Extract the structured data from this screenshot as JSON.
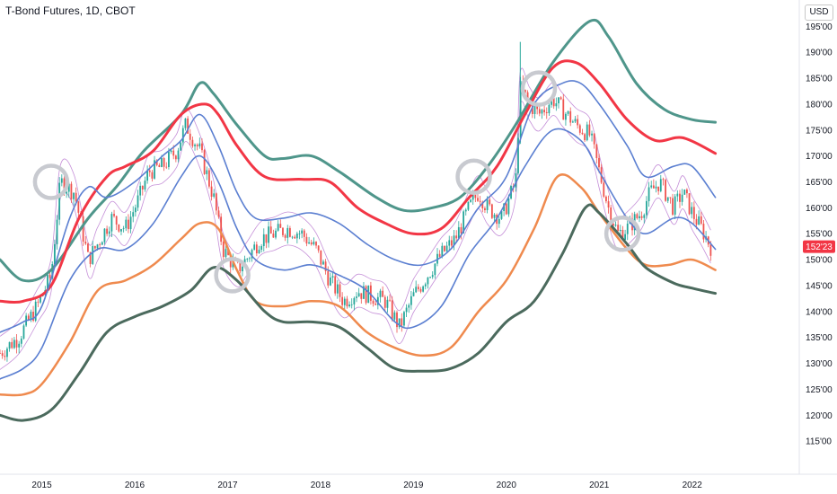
{
  "header": {
    "title": "T-Bond Futures, 1D, CBOT",
    "currency_button": "USD"
  },
  "price_tag": {
    "label": "152'23",
    "color": "#f23645"
  },
  "chart_data": {
    "type": "line",
    "ylim": [
      110,
      198
    ],
    "xlim": [
      2014.55,
      2022.38
    ],
    "y_tick_labels": [
      {
        "v": 115,
        "label": "115'00"
      },
      {
        "v": 120,
        "label": "120'00"
      },
      {
        "v": 125,
        "label": "125'00"
      },
      {
        "v": 130,
        "label": "130'00"
      },
      {
        "v": 135,
        "label": "135'00"
      },
      {
        "v": 140,
        "label": "140'00"
      },
      {
        "v": 145,
        "label": "145'00"
      },
      {
        "v": 150,
        "label": "150'00"
      },
      {
        "v": 155,
        "label": "155'00"
      },
      {
        "v": 160,
        "label": "160'00"
      },
      {
        "v": 165,
        "label": "165'00"
      },
      {
        "v": 170,
        "label": "170'00"
      },
      {
        "v": 175,
        "label": "175'00"
      },
      {
        "v": 180,
        "label": "180'00"
      },
      {
        "v": 185,
        "label": "185'00"
      },
      {
        "v": 190,
        "label": "190'00"
      },
      {
        "v": 195,
        "label": "195'00"
      }
    ],
    "x_tick_labels": [
      {
        "v": 2015,
        "label": "2015"
      },
      {
        "v": 2016,
        "label": "2016"
      },
      {
        "v": 2017,
        "label": "2017"
      },
      {
        "v": 2018,
        "label": "2018"
      },
      {
        "v": 2019,
        "label": "2019"
      },
      {
        "v": 2020,
        "label": "2020"
      },
      {
        "v": 2021,
        "label": "2021"
      },
      {
        "v": 2022,
        "label": "2022"
      }
    ],
    "series": [
      {
        "color": "#4f968b",
        "width": 3,
        "points": [
          [
            2014.55,
            150
          ],
          [
            2014.8,
            146
          ],
          [
            2015.1,
            148
          ],
          [
            2015.5,
            158
          ],
          [
            2015.8,
            164
          ],
          [
            2016.1,
            171
          ],
          [
            2016.5,
            178
          ],
          [
            2016.7,
            184
          ],
          [
            2016.85,
            182
          ],
          [
            2017.1,
            176
          ],
          [
            2017.4,
            170
          ],
          [
            2017.6,
            169.5
          ],
          [
            2017.9,
            170
          ],
          [
            2018.2,
            167
          ],
          [
            2018.6,
            162
          ],
          [
            2018.9,
            159.5
          ],
          [
            2019.2,
            160
          ],
          [
            2019.5,
            162
          ],
          [
            2019.8,
            168
          ],
          [
            2020.1,
            176
          ],
          [
            2020.5,
            188
          ],
          [
            2020.9,
            196
          ],
          [
            2021.1,
            193
          ],
          [
            2021.4,
            184
          ],
          [
            2021.7,
            179
          ],
          [
            2022.0,
            177
          ],
          [
            2022.25,
            176.5
          ]
        ]
      },
      {
        "color": "#f23645",
        "width": 3,
        "points": [
          [
            2014.55,
            142
          ],
          [
            2014.8,
            142
          ],
          [
            2015.1,
            145
          ],
          [
            2015.4,
            158
          ],
          [
            2015.7,
            166
          ],
          [
            2015.9,
            168
          ],
          [
            2016.2,
            171
          ],
          [
            2016.5,
            178
          ],
          [
            2016.75,
            180
          ],
          [
            2016.9,
            178
          ],
          [
            2017.1,
            172
          ],
          [
            2017.4,
            166
          ],
          [
            2017.8,
            165.5
          ],
          [
            2018.1,
            165
          ],
          [
            2018.4,
            160
          ],
          [
            2018.7,
            157
          ],
          [
            2019.0,
            155
          ],
          [
            2019.3,
            156
          ],
          [
            2019.6,
            162
          ],
          [
            2019.9,
            168
          ],
          [
            2020.2,
            178
          ],
          [
            2020.5,
            187
          ],
          [
            2020.75,
            188
          ],
          [
            2021.0,
            184
          ],
          [
            2021.3,
            177
          ],
          [
            2021.6,
            173
          ],
          [
            2021.9,
            173.5
          ],
          [
            2022.25,
            170.5
          ]
        ]
      },
      {
        "color": "#5b7fd1",
        "width": 1.6,
        "points": [
          [
            2014.55,
            136
          ],
          [
            2014.8,
            138
          ],
          [
            2015.0,
            141
          ],
          [
            2015.3,
            158
          ],
          [
            2015.5,
            164
          ],
          [
            2015.7,
            162
          ],
          [
            2016.0,
            165
          ],
          [
            2016.3,
            170
          ],
          [
            2016.5,
            173
          ],
          [
            2016.7,
            178
          ],
          [
            2016.9,
            172
          ],
          [
            2017.1,
            163
          ],
          [
            2017.3,
            158
          ],
          [
            2017.6,
            158
          ],
          [
            2017.9,
            159
          ],
          [
            2018.2,
            157
          ],
          [
            2018.5,
            153
          ],
          [
            2018.8,
            150
          ],
          [
            2019.1,
            149
          ],
          [
            2019.4,
            152
          ],
          [
            2019.7,
            160
          ],
          [
            2020.0,
            166
          ],
          [
            2020.3,
            180
          ],
          [
            2020.6,
            184
          ],
          [
            2020.8,
            184
          ],
          [
            2021.0,
            180
          ],
          [
            2021.3,
            172
          ],
          [
            2021.5,
            166
          ],
          [
            2021.8,
            168
          ],
          [
            2022.0,
            168
          ],
          [
            2022.25,
            162
          ]
        ]
      },
      {
        "color": "#5b7fd1",
        "width": 1.6,
        "points": [
          [
            2014.55,
            127
          ],
          [
            2014.8,
            129
          ],
          [
            2015.0,
            133
          ],
          [
            2015.3,
            146
          ],
          [
            2015.6,
            152
          ],
          [
            2015.9,
            152
          ],
          [
            2016.2,
            157
          ],
          [
            2016.5,
            166
          ],
          [
            2016.7,
            170
          ],
          [
            2016.9,
            165
          ],
          [
            2017.1,
            156
          ],
          [
            2017.3,
            150
          ],
          [
            2017.6,
            148
          ],
          [
            2017.9,
            149
          ],
          [
            2018.2,
            147
          ],
          [
            2018.5,
            144
          ],
          [
            2018.8,
            138
          ],
          [
            2019.0,
            137
          ],
          [
            2019.3,
            141
          ],
          [
            2019.6,
            151
          ],
          [
            2019.9,
            158
          ],
          [
            2020.2,
            168
          ],
          [
            2020.5,
            175
          ],
          [
            2020.8,
            173
          ],
          [
            2021.0,
            167
          ],
          [
            2021.3,
            158
          ],
          [
            2021.5,
            155
          ],
          [
            2021.8,
            158
          ],
          [
            2022.0,
            157
          ],
          [
            2022.25,
            152
          ]
        ]
      },
      {
        "color": "#ef8a4e",
        "width": 2.5,
        "points": [
          [
            2014.55,
            124
          ],
          [
            2014.8,
            124
          ],
          [
            2015.0,
            126
          ],
          [
            2015.3,
            134
          ],
          [
            2015.6,
            144
          ],
          [
            2015.9,
            146
          ],
          [
            2016.2,
            149
          ],
          [
            2016.5,
            154
          ],
          [
            2016.7,
            157
          ],
          [
            2016.9,
            156
          ],
          [
            2017.1,
            148
          ],
          [
            2017.3,
            142
          ],
          [
            2017.6,
            141
          ],
          [
            2017.9,
            142
          ],
          [
            2018.2,
            141
          ],
          [
            2018.5,
            136
          ],
          [
            2018.8,
            133
          ],
          [
            2019.1,
            131.5
          ],
          [
            2019.4,
            133
          ],
          [
            2019.7,
            140
          ],
          [
            2020.0,
            146
          ],
          [
            2020.3,
            156
          ],
          [
            2020.55,
            166
          ],
          [
            2020.8,
            164
          ],
          [
            2021.0,
            159
          ],
          [
            2021.3,
            152
          ],
          [
            2021.5,
            149
          ],
          [
            2021.75,
            149
          ],
          [
            2022.0,
            150
          ],
          [
            2022.25,
            148
          ]
        ]
      },
      {
        "color": "#4b6a5d",
        "width": 3,
        "points": [
          [
            2014.55,
            120
          ],
          [
            2014.8,
            119
          ],
          [
            2015.1,
            121
          ],
          [
            2015.4,
            128
          ],
          [
            2015.7,
            136
          ],
          [
            2016.0,
            139
          ],
          [
            2016.3,
            141
          ],
          [
            2016.6,
            144
          ],
          [
            2016.85,
            148.5
          ],
          [
            2017.1,
            146
          ],
          [
            2017.4,
            140
          ],
          [
            2017.6,
            138
          ],
          [
            2017.9,
            138
          ],
          [
            2018.2,
            137
          ],
          [
            2018.5,
            133
          ],
          [
            2018.8,
            129
          ],
          [
            2019.1,
            128.5
          ],
          [
            2019.4,
            129
          ],
          [
            2019.7,
            132
          ],
          [
            2020.0,
            138
          ],
          [
            2020.3,
            142
          ],
          [
            2020.6,
            151
          ],
          [
            2020.85,
            160
          ],
          [
            2021.0,
            159
          ],
          [
            2021.3,
            153
          ],
          [
            2021.5,
            148.5
          ],
          [
            2021.8,
            145.5
          ],
          [
            2022.0,
            144.5
          ],
          [
            2022.25,
            143.5
          ]
        ]
      }
    ],
    "price": {
      "up_color": "#26a69a",
      "down_color": "#ef5350",
      "band_color": "#c58fd8",
      "points": [
        [
          2014.55,
          132
        ],
        [
          2014.75,
          135
        ],
        [
          2014.95,
          141
        ],
        [
          2015.1,
          147
        ],
        [
          2015.2,
          165
        ],
        [
          2015.35,
          163
        ],
        [
          2015.5,
          150
        ],
        [
          2015.6,
          153
        ],
        [
          2015.75,
          158
        ],
        [
          2015.9,
          156
        ],
        [
          2016.05,
          162
        ],
        [
          2016.15,
          167
        ],
        [
          2016.3,
          168
        ],
        [
          2016.45,
          171
        ],
        [
          2016.55,
          176
        ],
        [
          2016.7,
          171
        ],
        [
          2016.85,
          162
        ],
        [
          2016.95,
          152
        ],
        [
          2017.1,
          148
        ],
        [
          2017.2,
          150
        ],
        [
          2017.35,
          154
        ],
        [
          2017.5,
          155
        ],
        [
          2017.65,
          156
        ],
        [
          2017.8,
          155
        ],
        [
          2017.95,
          152
        ],
        [
          2018.1,
          146
        ],
        [
          2018.25,
          142
        ],
        [
          2018.4,
          144
        ],
        [
          2018.55,
          143
        ],
        [
          2018.7,
          142
        ],
        [
          2018.85,
          137
        ],
        [
          2019.0,
          143
        ],
        [
          2019.15,
          147
        ],
        [
          2019.3,
          151
        ],
        [
          2019.45,
          154
        ],
        [
          2019.6,
          160
        ],
        [
          2019.7,
          163
        ],
        [
          2019.8,
          160
        ],
        [
          2019.95,
          158
        ],
        [
          2020.1,
          165
        ],
        [
          2020.15,
          183
        ],
        [
          2020.25,
          180
        ],
        [
          2020.35,
          178
        ],
        [
          2020.5,
          181
        ],
        [
          2020.6,
          179
        ],
        [
          2020.75,
          176
        ],
        [
          2020.9,
          174
        ],
        [
          2021.0,
          167
        ],
        [
          2021.1,
          160
        ],
        [
          2021.2,
          155
        ],
        [
          2021.3,
          156
        ],
        [
          2021.45,
          159
        ],
        [
          2021.55,
          163
        ],
        [
          2021.65,
          165
        ],
        [
          2021.8,
          160
        ],
        [
          2021.9,
          163
        ],
        [
          2022.0,
          159
        ],
        [
          2022.1,
          156
        ],
        [
          2022.2,
          152.5
        ]
      ]
    },
    "circles": [
      [
        2015.1,
        165
      ],
      [
        2017.05,
        147
      ],
      [
        2019.65,
        166
      ],
      [
        2020.35,
        183
      ],
      [
        2021.25,
        155
      ]
    ]
  }
}
